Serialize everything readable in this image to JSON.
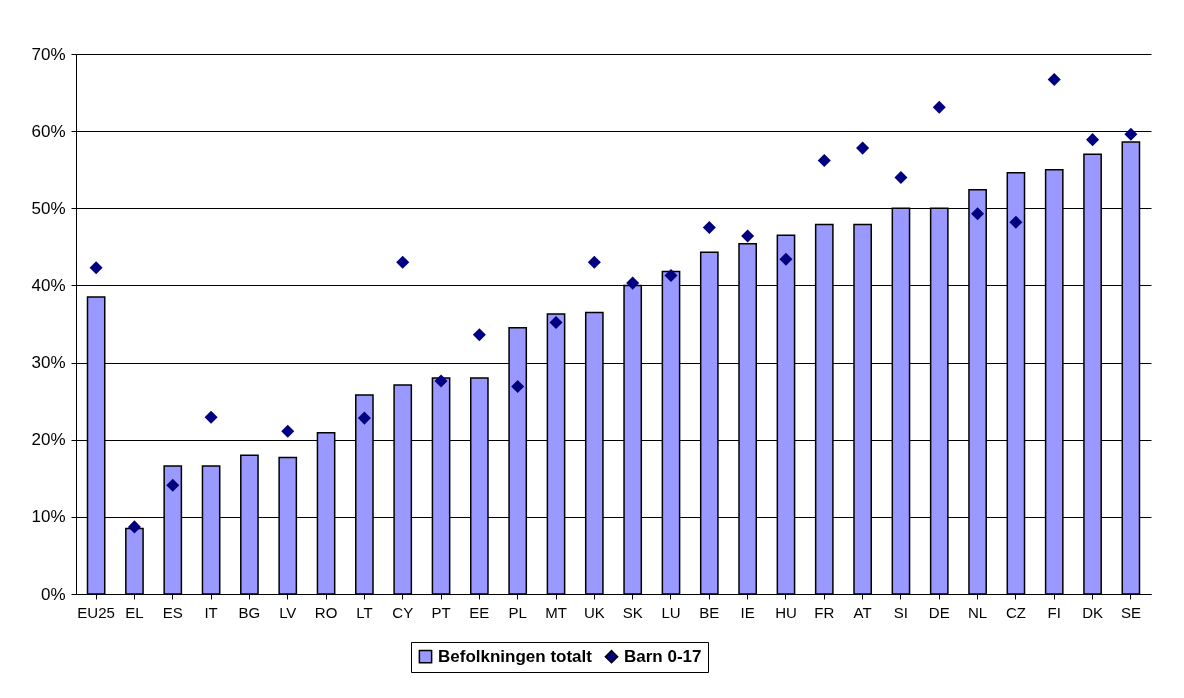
{
  "chart_data": {
    "type": "bar",
    "categories": [
      "EU25",
      "EL",
      "ES",
      "IT",
      "BG",
      "LV",
      "RO",
      "LT",
      "CY",
      "PT",
      "EE",
      "PL",
      "MT",
      "UK",
      "SK",
      "LU",
      "BE",
      "IE",
      "HU",
      "FR",
      "AT",
      "SI",
      "DE",
      "NL",
      "CZ",
      "FI",
      "DK",
      "SE"
    ],
    "series": [
      {
        "name": "Befolkningen totalt",
        "color": "#9999ff",
        "values": [
          38.5,
          8.5,
          16.6,
          16.6,
          18,
          17.7,
          20.9,
          25.8,
          27.1,
          28,
          28,
          34.5,
          36.3,
          36.5,
          40,
          41.8,
          44.3,
          45.4,
          46.5,
          47.9,
          47.9,
          50,
          50,
          52.4,
          54.6,
          55,
          57,
          58.6
        ]
      },
      {
        "name": "Barn 0-17",
        "type": "scatter",
        "marker": "diamond",
        "color": "#000080",
        "values": [
          42.3,
          8.7,
          14.1,
          22.9,
          null,
          21.1,
          null,
          22.8,
          43,
          27.6,
          33.6,
          26.9,
          35.2,
          43,
          40.3,
          41.3,
          47.5,
          46.4,
          43.4,
          56.2,
          57.8,
          54,
          63.1,
          49.3,
          48.2,
          66.7,
          58.9,
          59.6
        ]
      }
    ],
    "ylim": [
      0,
      70
    ],
    "yticks": [
      {
        "value": 0,
        "label": "0%"
      },
      {
        "value": 10,
        "label": "10%"
      },
      {
        "value": 20,
        "label": "20%"
      },
      {
        "value": 30,
        "label": "30%"
      },
      {
        "value": 40,
        "label": "40%"
      },
      {
        "value": 50,
        "label": "50%"
      },
      {
        "value": 60,
        "label": "60%"
      },
      {
        "value": 70,
        "label": "70%"
      }
    ],
    "grid": "y",
    "legend": "bottom"
  }
}
